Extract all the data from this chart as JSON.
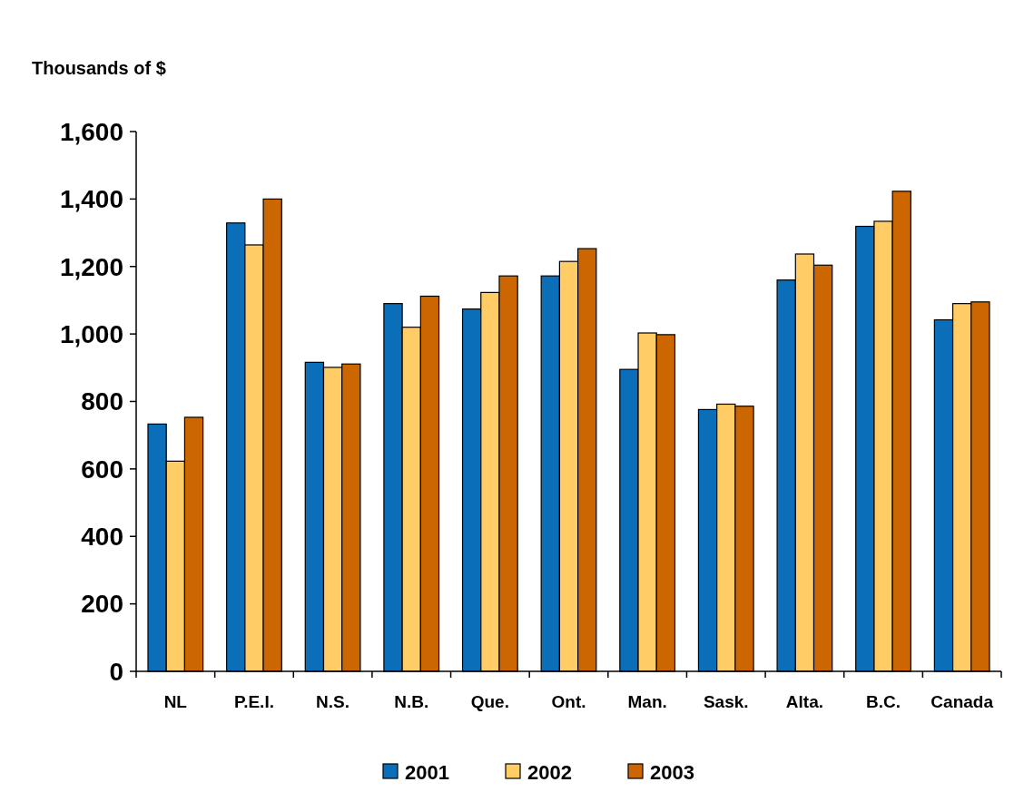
{
  "chart_data": {
    "type": "bar",
    "ylabel": "Thousands of $",
    "categories": [
      "NL",
      "P.E.I.",
      "N.S.",
      "N.B.",
      "Que.",
      "Ont.",
      "Man.",
      "Sask.",
      "Alta.",
      "B.C.",
      "Canada"
    ],
    "series": [
      {
        "name": "2001",
        "color": "#0a6eb8",
        "values": [
          733,
          1329,
          916,
          1090,
          1074,
          1172,
          895,
          776,
          1160,
          1319,
          1042
        ]
      },
      {
        "name": "2002",
        "color": "#ffcc66",
        "values": [
          623,
          1264,
          901,
          1020,
          1123,
          1215,
          1003,
          792,
          1237,
          1334,
          1090
        ]
      },
      {
        "name": "2003",
        "color": "#cc6600",
        "values": [
          753,
          1400,
          911,
          1112,
          1172,
          1253,
          998,
          786,
          1204,
          1423,
          1095
        ]
      }
    ],
    "ylim": [
      0,
      1600
    ],
    "yticks": [
      {
        "value": 0,
        "label": "0"
      },
      {
        "value": 200,
        "label": "200"
      },
      {
        "value": 400,
        "label": "400"
      },
      {
        "value": 600,
        "label": "600"
      },
      {
        "value": 800,
        "label": "800"
      },
      {
        "value": 1000,
        "label": "1,000"
      },
      {
        "value": 1200,
        "label": "1,200"
      },
      {
        "value": 1400,
        "label": "1,400"
      },
      {
        "value": 1600,
        "label": "1,600"
      }
    ],
    "grid": false,
    "legend": "bottom"
  }
}
